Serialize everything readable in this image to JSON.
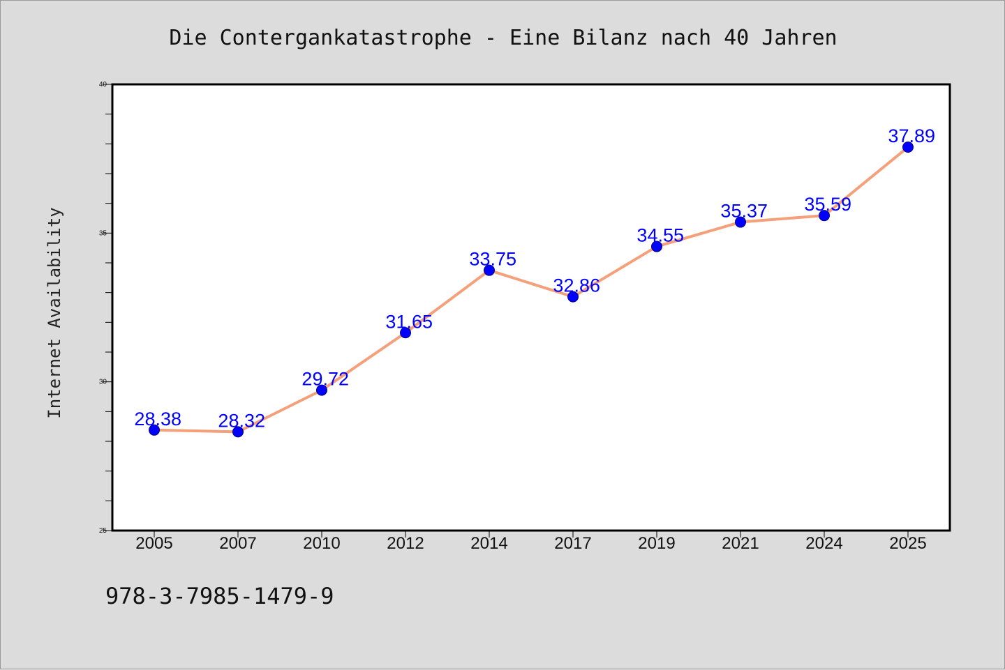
{
  "chart_data": {
    "type": "line",
    "title": "Die Contergankatastrophe - Eine Bilanz nach 40 Jahren",
    "xlabel": "",
    "ylabel": "Internet Availability",
    "categories": [
      "2005",
      "2007",
      "2010",
      "2012",
      "2014",
      "2017",
      "2019",
      "2021",
      "2024",
      "2025"
    ],
    "values": [
      28.38,
      28.32,
      29.72,
      31.65,
      33.75,
      32.86,
      34.55,
      35.37,
      35.59,
      37.89
    ],
    "data_labels": [
      "28.38",
      "28.32",
      "29.72",
      "31.65",
      "33.75",
      "32.86",
      "34.55",
      "35.37",
      "35.59",
      "37.89"
    ],
    "ylim": [
      25,
      40
    ],
    "yticks": [
      25,
      30,
      35,
      40
    ],
    "ytick_labels": [
      "25",
      "30",
      "35",
      "40"
    ],
    "grid": false,
    "legend": false,
    "colors": {
      "line": "#f4a07a",
      "marker": "#0000ff",
      "label": "#0000ff",
      "background": "#dcdcdc",
      "plot_area": "#ffffff"
    }
  },
  "footer": {
    "isbn": "978-3-7985-1479-9"
  }
}
